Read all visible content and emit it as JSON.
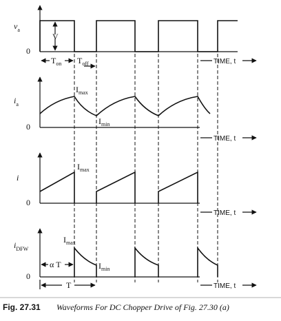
{
  "panels": [
    {
      "label": {
        "symbol": "v",
        "sub": "a"
      },
      "level": "V",
      "zero": "0",
      "t_on": {
        "symbol": "T",
        "sub": "on"
      },
      "t_off": {
        "symbol": "T",
        "sub": "off"
      },
      "time": "TIME, t"
    },
    {
      "label": {
        "symbol": "i",
        "sub": "a"
      },
      "max": {
        "symbol": "I",
        "sub": "max"
      },
      "min": {
        "symbol": "I",
        "sub": "min"
      },
      "zero": "0",
      "time": "TIME, t"
    },
    {
      "label": {
        "symbol": "i"
      },
      "max": {
        "symbol": "I",
        "sub": "max"
      },
      "zero": "0",
      "time": "TIME, t"
    },
    {
      "label": {
        "symbol": "i",
        "sub": "DFW"
      },
      "max": {
        "symbol": "I",
        "sub": "max"
      },
      "min": {
        "symbol": "I",
        "sub": "min"
      },
      "alpha_t": "α T",
      "zero": "0",
      "period": "T",
      "time": "TIME, t"
    }
  ],
  "caption": {
    "number": "Fig. 27.31",
    "text": "Waveforms For DC Chopper Drive of Fig. 27.30 (a)"
  }
}
